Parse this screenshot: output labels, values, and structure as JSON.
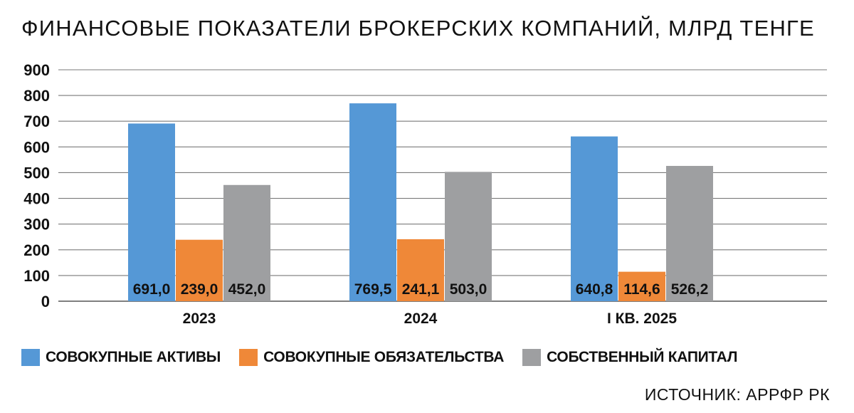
{
  "chart_data": {
    "type": "bar",
    "title": "ФИНАНСОВЫЕ ПОКАЗАТЕЛИ БРОКЕРСКИХ КОМПАНИЙ, МЛРД ТЕНГЕ",
    "categories": [
      "2023",
      "2024",
      "I КВ. 2025"
    ],
    "series": [
      {
        "name": "СОВОКУПНЫЕ АКТИВЫ",
        "color": "#5598d6",
        "values": [
          691.0,
          769.5,
          640.8
        ],
        "labels": [
          "691,0",
          "769,5",
          "640,8"
        ]
      },
      {
        "name": "СОВОКУПНЫЕ ОБЯЗАТЕЛЬСТВА",
        "color": "#ef8838",
        "values": [
          239.0,
          241.1,
          114.6
        ],
        "labels": [
          "239,0",
          "241,1",
          "114,6"
        ]
      },
      {
        "name": "СОБСТВЕННЫЙ КАПИТАЛ",
        "color": "#9e9fa1",
        "values": [
          452.0,
          503.0,
          526.2
        ],
        "labels": [
          "452,0",
          "503,0",
          "526,2"
        ]
      }
    ],
    "yticks": [
      "0",
      "100",
      "200",
      "300",
      "400",
      "500",
      "600",
      "700",
      "800",
      "900"
    ],
    "ylim": [
      0,
      900
    ],
    "grid": true,
    "legend_position": "bottom-left",
    "source": "ИСТОЧНИК: АРРФР РК"
  }
}
